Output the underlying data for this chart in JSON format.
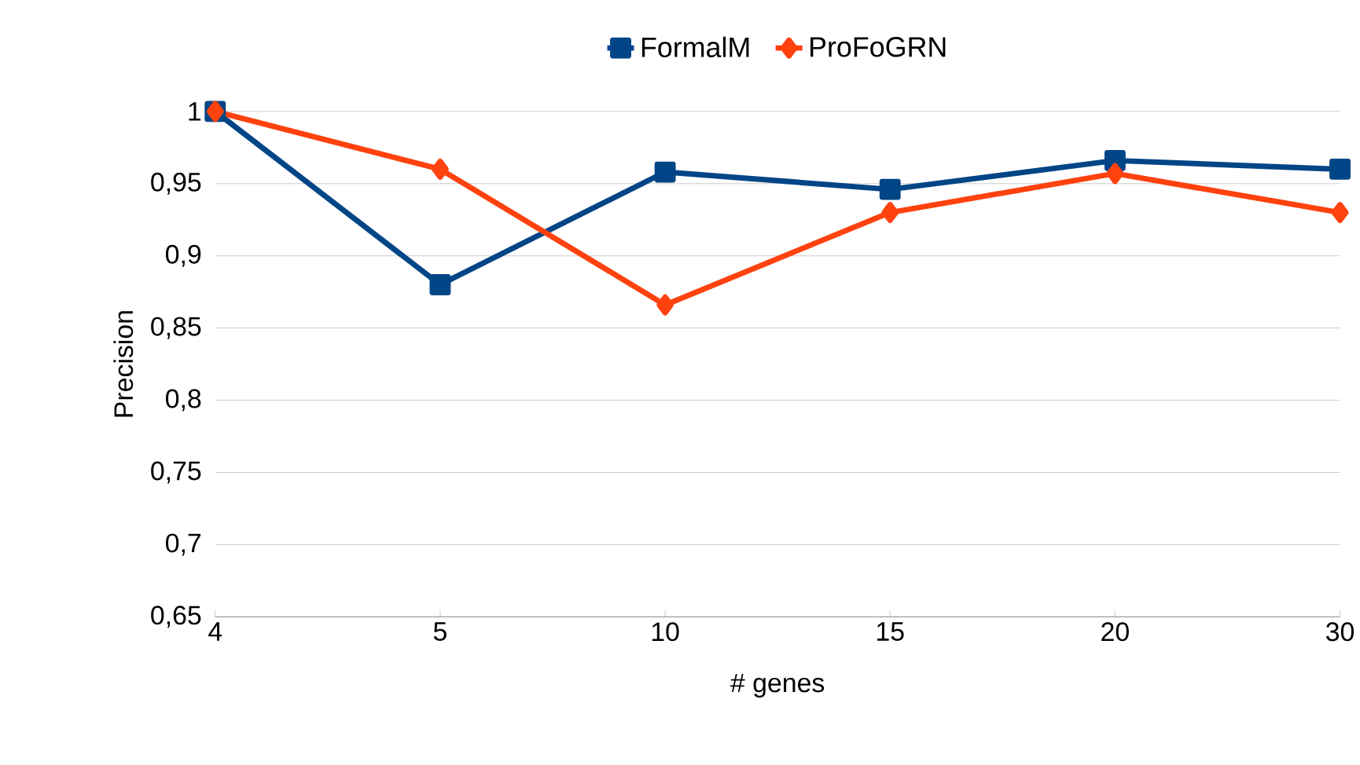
{
  "chart_data": {
    "type": "line",
    "xlabel": "# genes",
    "ylabel": "Precision",
    "categories": [
      "4",
      "5",
      "10",
      "15",
      "20",
      "30"
    ],
    "series": [
      {
        "name": "FormalM",
        "color": "#004586",
        "marker": "square",
        "values": [
          1,
          0.88,
          0.958,
          0.946,
          0.966,
          0.96
        ]
      },
      {
        "name": "ProFoGRN",
        "color": "#ff420e",
        "marker": "diamond",
        "values": [
          1,
          0.96,
          0.866,
          0.93,
          0.957,
          0.93
        ]
      }
    ],
    "ylim": [
      0.65,
      1
    ],
    "yticks": [
      {
        "value": 0.65,
        "label": "0,65"
      },
      {
        "value": 0.7,
        "label": "0,7"
      },
      {
        "value": 0.75,
        "label": "0,75"
      },
      {
        "value": 0.8,
        "label": "0,8"
      },
      {
        "value": 0.85,
        "label": "0,85"
      },
      {
        "value": 0.9,
        "label": "0,9"
      },
      {
        "value": 0.95,
        "label": "0,95"
      },
      {
        "value": 1,
        "label": "1"
      }
    ],
    "grid": "y",
    "legend": "top"
  }
}
